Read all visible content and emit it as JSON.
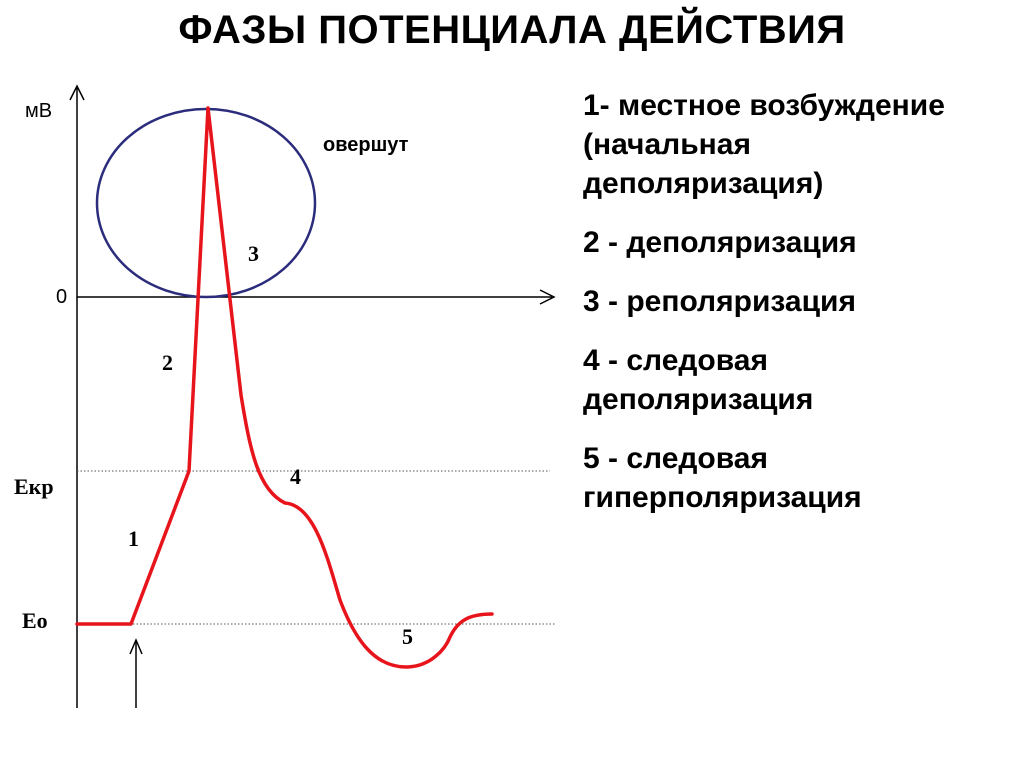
{
  "title": "ФАЗЫ ПОТЕНЦИАЛА ДЕЙСТВИЯ",
  "axis": {
    "y_unit": "мВ",
    "zero": "0"
  },
  "levels": {
    "threshold": "Екр",
    "rest": "Ео"
  },
  "annotation": "овершут",
  "phase_numbers": [
    "1",
    "2",
    "3",
    "4",
    "5"
  ],
  "legend": [
    "1- местное возбуждение\n(начальная\nдеполяризация)",
    "2 - деполяризация",
    "3 - реполяризация",
    "4 - следовая\nдеполяризация",
    "5 - следовая\nгиперполяризация"
  ],
  "colors": {
    "curve": "#e8141b",
    "circle": "#2b2c7c",
    "axis": "#000000"
  }
}
